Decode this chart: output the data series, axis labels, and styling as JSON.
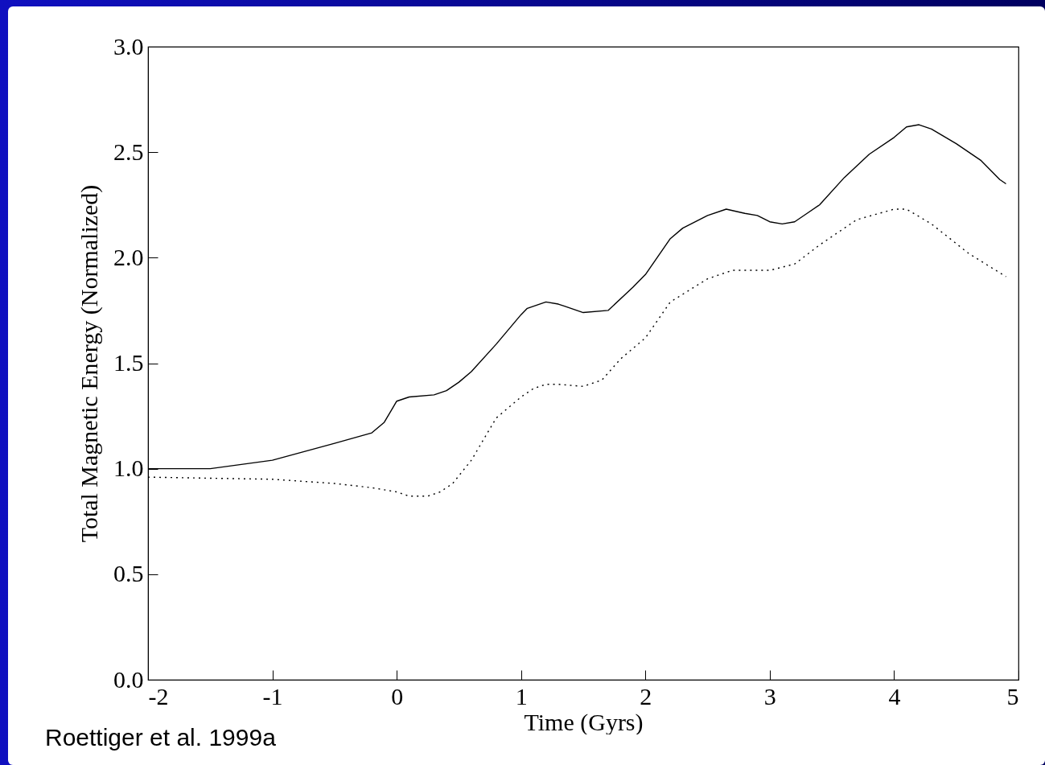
{
  "chart_data": {
    "type": "line",
    "xlabel": "Time (Gyrs)",
    "ylabel": "Total Magnetic Energy (Normalized)",
    "xlim": [
      -2,
      5
    ],
    "ylim": [
      0,
      3
    ],
    "xticks": [
      -2,
      -1,
      0,
      1,
      2,
      3,
      4,
      5
    ],
    "yticks": [
      {
        "value": 0,
        "label": "0.0"
      },
      {
        "value": 0.5,
        "label": "0.5"
      },
      {
        "value": 1,
        "label": "1.0"
      },
      {
        "value": 1.5,
        "label": "1.5"
      },
      {
        "value": 2,
        "label": "2.0"
      },
      {
        "value": 2.5,
        "label": "2.5"
      },
      {
        "value": 3,
        "label": "3.0"
      }
    ],
    "grid": false,
    "series": [
      {
        "color": "#000000",
        "line_style": "solid",
        "x": [
          -2,
          -1.5,
          -1,
          -0.5,
          -0.2,
          -0.1,
          0,
          0.1,
          0.3,
          0.4,
          0.5,
          0.6,
          0.8,
          1.0,
          1.05,
          1.2,
          1.3,
          1.35,
          1.5,
          1.7,
          1.9,
          2.0,
          2.2,
          2.3,
          2.5,
          2.65,
          2.8,
          2.9,
          3.0,
          3.1,
          3.2,
          3.3,
          3.4,
          3.6,
          3.8,
          4.0,
          4.1,
          4.2,
          4.3,
          4.5,
          4.7,
          4.85,
          4.9
        ],
        "values": [
          1.0,
          1.0,
          1.04,
          1.12,
          1.17,
          1.22,
          1.32,
          1.34,
          1.35,
          1.37,
          1.41,
          1.46,
          1.59,
          1.73,
          1.76,
          1.79,
          1.78,
          1.77,
          1.74,
          1.75,
          1.86,
          1.92,
          2.09,
          2.14,
          2.2,
          2.23,
          2.21,
          2.2,
          2.17,
          2.16,
          2.17,
          2.21,
          2.25,
          2.38,
          2.49,
          2.57,
          2.62,
          2.63,
          2.61,
          2.54,
          2.46,
          2.37,
          2.35
        ]
      },
      {
        "color": "#000000",
        "line_style": "dotted",
        "x": [
          -2,
          -1,
          -0.5,
          -0.2,
          0,
          0.1,
          0.25,
          0.35,
          0.45,
          0.6,
          0.8,
          1.0,
          1.1,
          1.2,
          1.3,
          1.5,
          1.65,
          1.8,
          2.0,
          2.2,
          2.5,
          2.7,
          3.0,
          3.2,
          3.4,
          3.7,
          4.0,
          4.1,
          4.3,
          4.6,
          4.9
        ],
        "values": [
          0.96,
          0.95,
          0.93,
          0.91,
          0.89,
          0.87,
          0.87,
          0.89,
          0.93,
          1.04,
          1.24,
          1.34,
          1.38,
          1.4,
          1.4,
          1.39,
          1.42,
          1.52,
          1.62,
          1.79,
          1.9,
          1.94,
          1.94,
          1.97,
          2.06,
          2.18,
          2.23,
          2.23,
          2.16,
          2.02,
          1.91
        ]
      }
    ],
    "annotations": [
      "Roettiger et al. 1999a"
    ]
  }
}
